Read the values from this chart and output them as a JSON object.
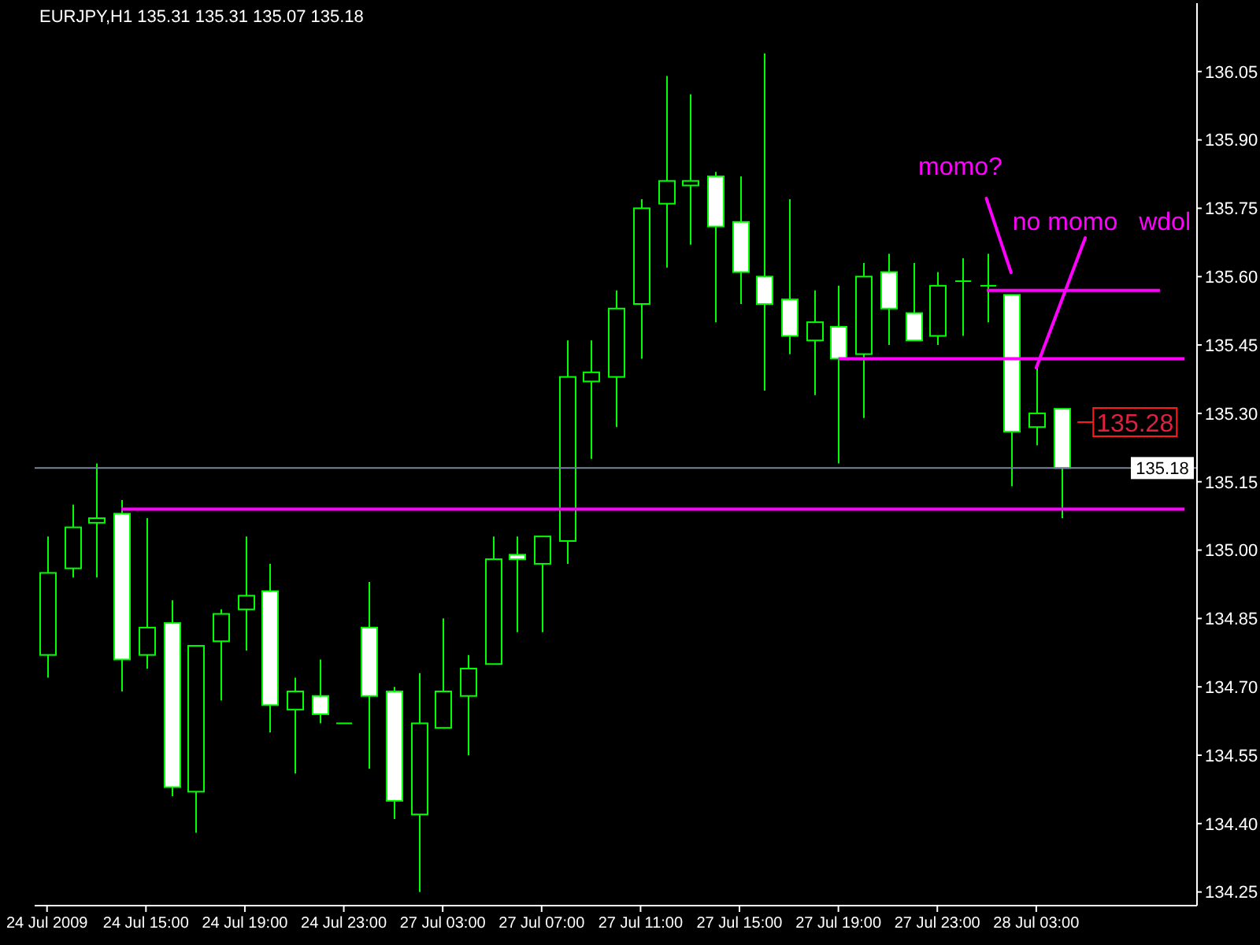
{
  "chart_data": {
    "type": "candlestick",
    "title": "EURJPY,H1 135.31 135.31 135.07 135.18",
    "categories": [
      "24 Jul 2009",
      null,
      null,
      null,
      "24 Jul 15:00",
      null,
      null,
      null,
      "24 Jul 19:00",
      null,
      null,
      null,
      "24 Jul 23:00",
      null,
      null,
      null,
      "27 Jul 03:00",
      null,
      null,
      null,
      "27 Jul 07:00",
      null,
      null,
      null,
      "27 Jul 11:00",
      null,
      null,
      null,
      "27 Jul 15:00",
      null,
      null,
      null,
      "27 Jul 19:00",
      null,
      null,
      null,
      "27 Jul 23:00",
      null,
      null,
      null,
      "28 Jul 03:00",
      null,
      null,
      null,
      null,
      null,
      null
    ],
    "ohlc": [
      [
        134.77,
        135.03,
        134.72,
        134.95
      ],
      [
        134.96,
        135.1,
        134.94,
        135.05
      ],
      [
        135.06,
        135.19,
        134.94,
        135.07
      ],
      [
        135.08,
        135.11,
        134.69,
        134.76
      ],
      [
        134.77,
        135.07,
        134.74,
        134.83
      ],
      [
        134.84,
        134.89,
        134.46,
        134.48
      ],
      [
        134.47,
        134.79,
        134.38,
        134.79
      ],
      [
        134.8,
        134.87,
        134.67,
        134.86
      ],
      [
        134.87,
        135.03,
        134.78,
        134.9
      ],
      [
        134.91,
        134.97,
        134.6,
        134.66
      ],
      [
        134.65,
        134.72,
        134.51,
        134.69
      ],
      [
        134.68,
        134.76,
        134.62,
        134.64
      ],
      [
        134.62,
        134.62,
        134.62,
        134.62
      ],
      [
        134.83,
        134.93,
        134.52,
        134.68
      ],
      [
        134.69,
        134.7,
        134.41,
        134.45
      ],
      [
        134.42,
        134.73,
        134.25,
        134.62
      ],
      [
        134.61,
        134.85,
        134.61,
        134.69
      ],
      [
        134.68,
        134.77,
        134.55,
        134.74
      ],
      [
        134.75,
        135.03,
        134.75,
        134.98
      ],
      [
        134.99,
        135.03,
        134.82,
        134.98
      ],
      [
        134.97,
        135.03,
        134.82,
        135.03
      ],
      [
        135.02,
        135.46,
        134.97,
        135.38
      ],
      [
        135.37,
        135.46,
        135.2,
        135.39
      ],
      [
        135.38,
        135.57,
        135.27,
        135.53
      ],
      [
        135.54,
        135.77,
        135.42,
        135.75
      ],
      [
        135.76,
        136.04,
        135.62,
        135.81
      ],
      [
        135.8,
        136.0,
        135.67,
        135.81
      ],
      [
        135.82,
        135.83,
        135.5,
        135.71
      ],
      [
        135.72,
        135.82,
        135.54,
        135.61
      ],
      [
        135.6,
        136.09,
        135.35,
        135.54
      ],
      [
        135.55,
        135.77,
        135.43,
        135.47
      ],
      [
        135.46,
        135.57,
        135.34,
        135.5
      ],
      [
        135.49,
        135.58,
        135.19,
        135.42
      ],
      [
        135.43,
        135.63,
        135.29,
        135.6
      ],
      [
        135.61,
        135.65,
        135.45,
        135.53
      ],
      [
        135.52,
        135.63,
        135.46,
        135.46
      ],
      [
        135.47,
        135.61,
        135.45,
        135.58
      ],
      [
        135.59,
        135.64,
        135.47,
        135.59
      ],
      [
        135.58,
        135.65,
        135.5,
        135.58
      ],
      [
        135.56,
        135.56,
        135.14,
        135.26
      ],
      [
        135.27,
        135.4,
        135.23,
        135.3
      ],
      [
        135.31,
        135.31,
        135.07,
        135.18
      ],
      null,
      null,
      null,
      null,
      null
    ],
    "color": "#00ff00",
    "colors": [
      "#000000",
      "#000000",
      "#000000",
      "#ffffff",
      "#000000",
      "#ffffff",
      "#000000",
      "#000000",
      "#000000",
      "#ffffff",
      "#000000",
      "#ffffff",
      "#00ff00",
      "#ffffff",
      "#ffffff",
      "#000000",
      "#000000",
      "#000000",
      "#000000",
      "#ffffff",
      "#000000",
      "#000000",
      "#000000",
      "#000000",
      "#000000",
      "#000000",
      "#000000",
      "#ffffff",
      "#ffffff",
      "#ffffff",
      "#ffffff",
      "#000000",
      "#ffffff",
      "#000000",
      "#ffffff",
      "#ffffff",
      "#000000",
      "#00ff00",
      "#00ff00",
      "#ffffff",
      "#000000",
      "#ffffff",
      null,
      null,
      null,
      null,
      null
    ],
    "series": [
      {
        "type": "line",
        "color": "#ff00ff",
        "values": [
          null,
          null,
          null,
          135.09,
          135.09,
          135.09,
          135.09,
          135.09,
          135.09,
          135.09,
          135.09,
          135.09,
          135.09,
          135.09,
          135.09,
          135.09,
          135.09,
          135.09,
          135.09,
          135.09,
          135.09,
          135.09,
          135.09,
          135.09,
          135.09,
          135.09,
          135.09,
          135.09,
          135.09,
          135.09,
          135.09,
          135.09,
          135.09,
          135.09,
          135.09,
          135.09,
          135.09,
          135.09,
          135.09,
          135.09,
          135.09,
          135.09,
          135.09,
          135.09,
          135.09,
          135.09,
          135.09
        ]
      },
      {
        "type": "line",
        "color": "#ff00ff",
        "values": [
          null,
          null,
          null,
          null,
          null,
          null,
          null,
          null,
          null,
          null,
          null,
          null,
          null,
          null,
          null,
          null,
          null,
          null,
          null,
          null,
          null,
          null,
          null,
          null,
          null,
          null,
          null,
          null,
          null,
          null,
          null,
          null,
          135.42,
          135.42,
          135.42,
          135.42,
          135.42,
          135.42,
          135.42,
          135.42,
          135.42,
          135.42,
          135.42,
          135.42,
          135.42,
          135.42,
          135.42
        ]
      },
      {
        "type": "line",
        "color": "#ff00ff",
        "values": [
          null,
          null,
          null,
          null,
          null,
          null,
          null,
          null,
          null,
          null,
          null,
          null,
          null,
          null,
          null,
          null,
          null,
          null,
          null,
          null,
          null,
          null,
          null,
          null,
          null,
          null,
          null,
          null,
          null,
          null,
          null,
          null,
          null,
          null,
          null,
          null,
          null,
          null,
          135.57,
          135.57,
          135.57,
          135.57,
          135.57,
          135.57,
          135.57,
          135.57,
          null
        ]
      }
    ],
    "ylim": [
      134.22,
      136.2
    ],
    "yticks": [
      134.25,
      {
        "value": 134.4,
        "label": "134.40"
      },
      134.55,
      {
        "value": 134.7,
        "label": "134.70"
      },
      134.85,
      {
        "value": 135,
        "label": "135.00"
      },
      135.15,
      {
        "value": 135.3,
        "label": "135.30"
      },
      135.45,
      {
        "value": 135.6,
        "label": "135.60"
      },
      135.75,
      {
        "value": 135.9,
        "label": "135.90"
      },
      136.05
    ],
    "ref_lines": [
      {
        "axis": "y",
        "value": 135.18,
        "label": "135.18",
        "color": "#778899"
      }
    ],
    "annotations": [
      "135.28",
      "momo?",
      {
        "text": "no momo",
        "x": "28 Jul 03:00",
        "y": 135.4
      },
      "wdol"
    ]
  }
}
